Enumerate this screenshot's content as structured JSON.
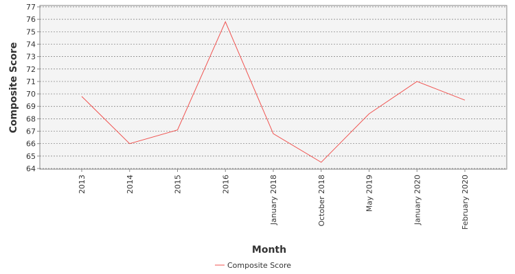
{
  "chart_data": {
    "type": "line",
    "x_label": "Month",
    "y_label": "Composite Score",
    "categories": [
      "2013",
      "2014",
      "2015",
      "2016",
      "January 2018",
      "October 2018",
      "May 2019",
      "January 2020",
      "February 2020"
    ],
    "series": [
      {
        "name": "Composite Score",
        "color": "#f0524f",
        "values": [
          69.8,
          66.0,
          67.1,
          75.8,
          66.8,
          64.5,
          68.4,
          71.0,
          69.5
        ]
      }
    ],
    "ylim": [
      64,
      77
    ],
    "yticks": [
      64,
      65,
      66,
      67,
      68,
      69,
      70,
      71,
      72,
      73,
      74,
      75,
      76,
      77
    ],
    "grid": true,
    "legend": "bottom"
  }
}
